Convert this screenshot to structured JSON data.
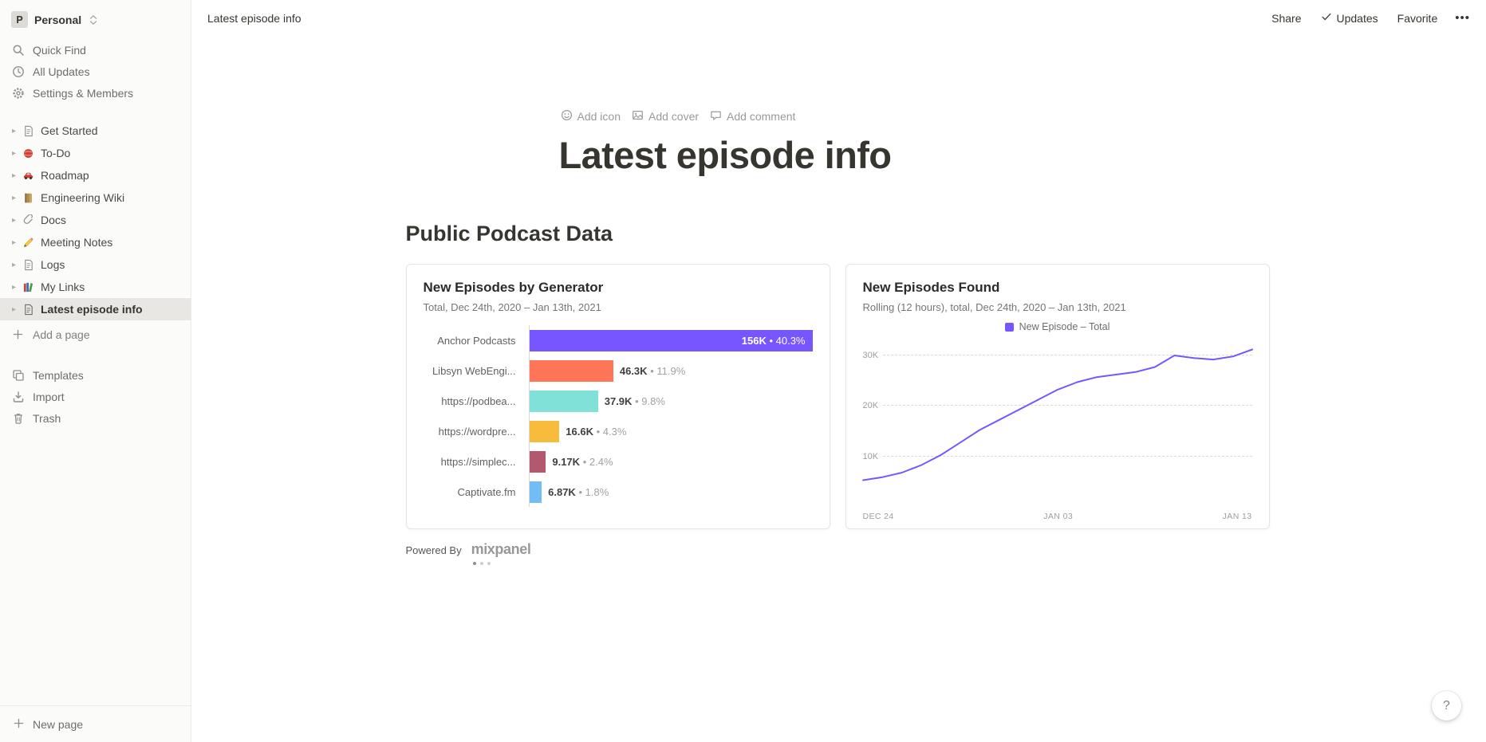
{
  "topbar": {
    "breadcrumb": "Latest episode info",
    "share_label": "Share",
    "updates_label": "Updates",
    "favorite_label": "Favorite",
    "more_label": "•••"
  },
  "sidebar": {
    "workspace": {
      "initial": "P",
      "name": "Personal"
    },
    "menu": [
      {
        "label": "Quick Find",
        "icon": "search-icon"
      },
      {
        "label": "All Updates",
        "icon": "clock-icon"
      },
      {
        "label": "Settings & Members",
        "icon": "gear-icon"
      }
    ],
    "pages": [
      {
        "label": "Get Started",
        "icon": "document-icon"
      },
      {
        "label": "To-Do",
        "icon": "red-yarn-icon"
      },
      {
        "label": "Roadmap",
        "icon": "car-icon"
      },
      {
        "label": "Engineering Wiki",
        "icon": "notebook-icon"
      },
      {
        "label": "Docs",
        "icon": "paperclip-icon"
      },
      {
        "label": "Meeting Notes",
        "icon": "pencil-icon"
      },
      {
        "label": "Logs",
        "icon": "document-icon"
      },
      {
        "label": "My Links",
        "icon": "books-icon"
      },
      {
        "label": "Latest episode info",
        "icon": "document-icon",
        "selected": true
      }
    ],
    "add_page_label": "Add a page",
    "tools": [
      {
        "label": "Templates",
        "icon": "templates-icon"
      },
      {
        "label": "Import",
        "icon": "import-icon"
      },
      {
        "label": "Trash",
        "icon": "trash-icon"
      }
    ],
    "new_page_label": "New page"
  },
  "page": {
    "actions": [
      {
        "label": "Add icon",
        "icon": "smiley-icon"
      },
      {
        "label": "Add cover",
        "icon": "image-icon"
      },
      {
        "label": "Add comment",
        "icon": "comment-icon"
      }
    ],
    "title": "Latest episode info",
    "section_heading": "Public Podcast Data",
    "powered_by_label": "Powered By",
    "mixpanel_logo_text": "mixpanel",
    "help_label": "?"
  },
  "chart_data": [
    {
      "type": "bar",
      "orientation": "horizontal",
      "title": "New Episodes by Generator",
      "subtitle": "Total, Dec 24th, 2020 – Jan 13th, 2021",
      "categories": [
        "Anchor Podcasts",
        "Libsyn WebEngi...",
        "https://podbea...",
        "https://wordpre...",
        "https://simplec...",
        "Captivate.fm"
      ],
      "values": [
        156000,
        46300,
        37900,
        16600,
        9170,
        6870
      ],
      "value_labels": [
        "156K",
        "46.3K",
        "37.9K",
        "16.6K",
        "9.17K",
        "6.87K"
      ],
      "percent_labels": [
        "40.3%",
        "11.9%",
        "9.8%",
        "4.3%",
        "2.4%",
        "1.8%"
      ],
      "colors": [
        "#7856FF",
        "#FF7557",
        "#80E1D9",
        "#F8BC3C",
        "#B2596E",
        "#72BEF4"
      ],
      "xlim": [
        0,
        156000
      ]
    },
    {
      "type": "line",
      "title": "New Episodes Found",
      "subtitle": "Rolling (12 hours), total, Dec 24th, 2020 – Jan 13th, 2021",
      "legend": [
        {
          "label": "New Episode – Total",
          "color": "#7856FF"
        }
      ],
      "x_range": [
        "Dec 24, 2020",
        "Jan 13, 2021"
      ],
      "x_tick_labels": [
        "DEC 24",
        "JAN 03",
        "JAN 13"
      ],
      "y_tick_labels": [
        "10K",
        "20K",
        "30K"
      ],
      "ylim": [
        0,
        32500
      ],
      "values": [
        5000,
        5600,
        6500,
        8000,
        10000,
        12500,
        15000,
        17000,
        19000,
        21000,
        23000,
        24500,
        25500,
        26000,
        26500,
        27500,
        29800,
        29300,
        29000,
        29600,
        31000
      ]
    }
  ]
}
